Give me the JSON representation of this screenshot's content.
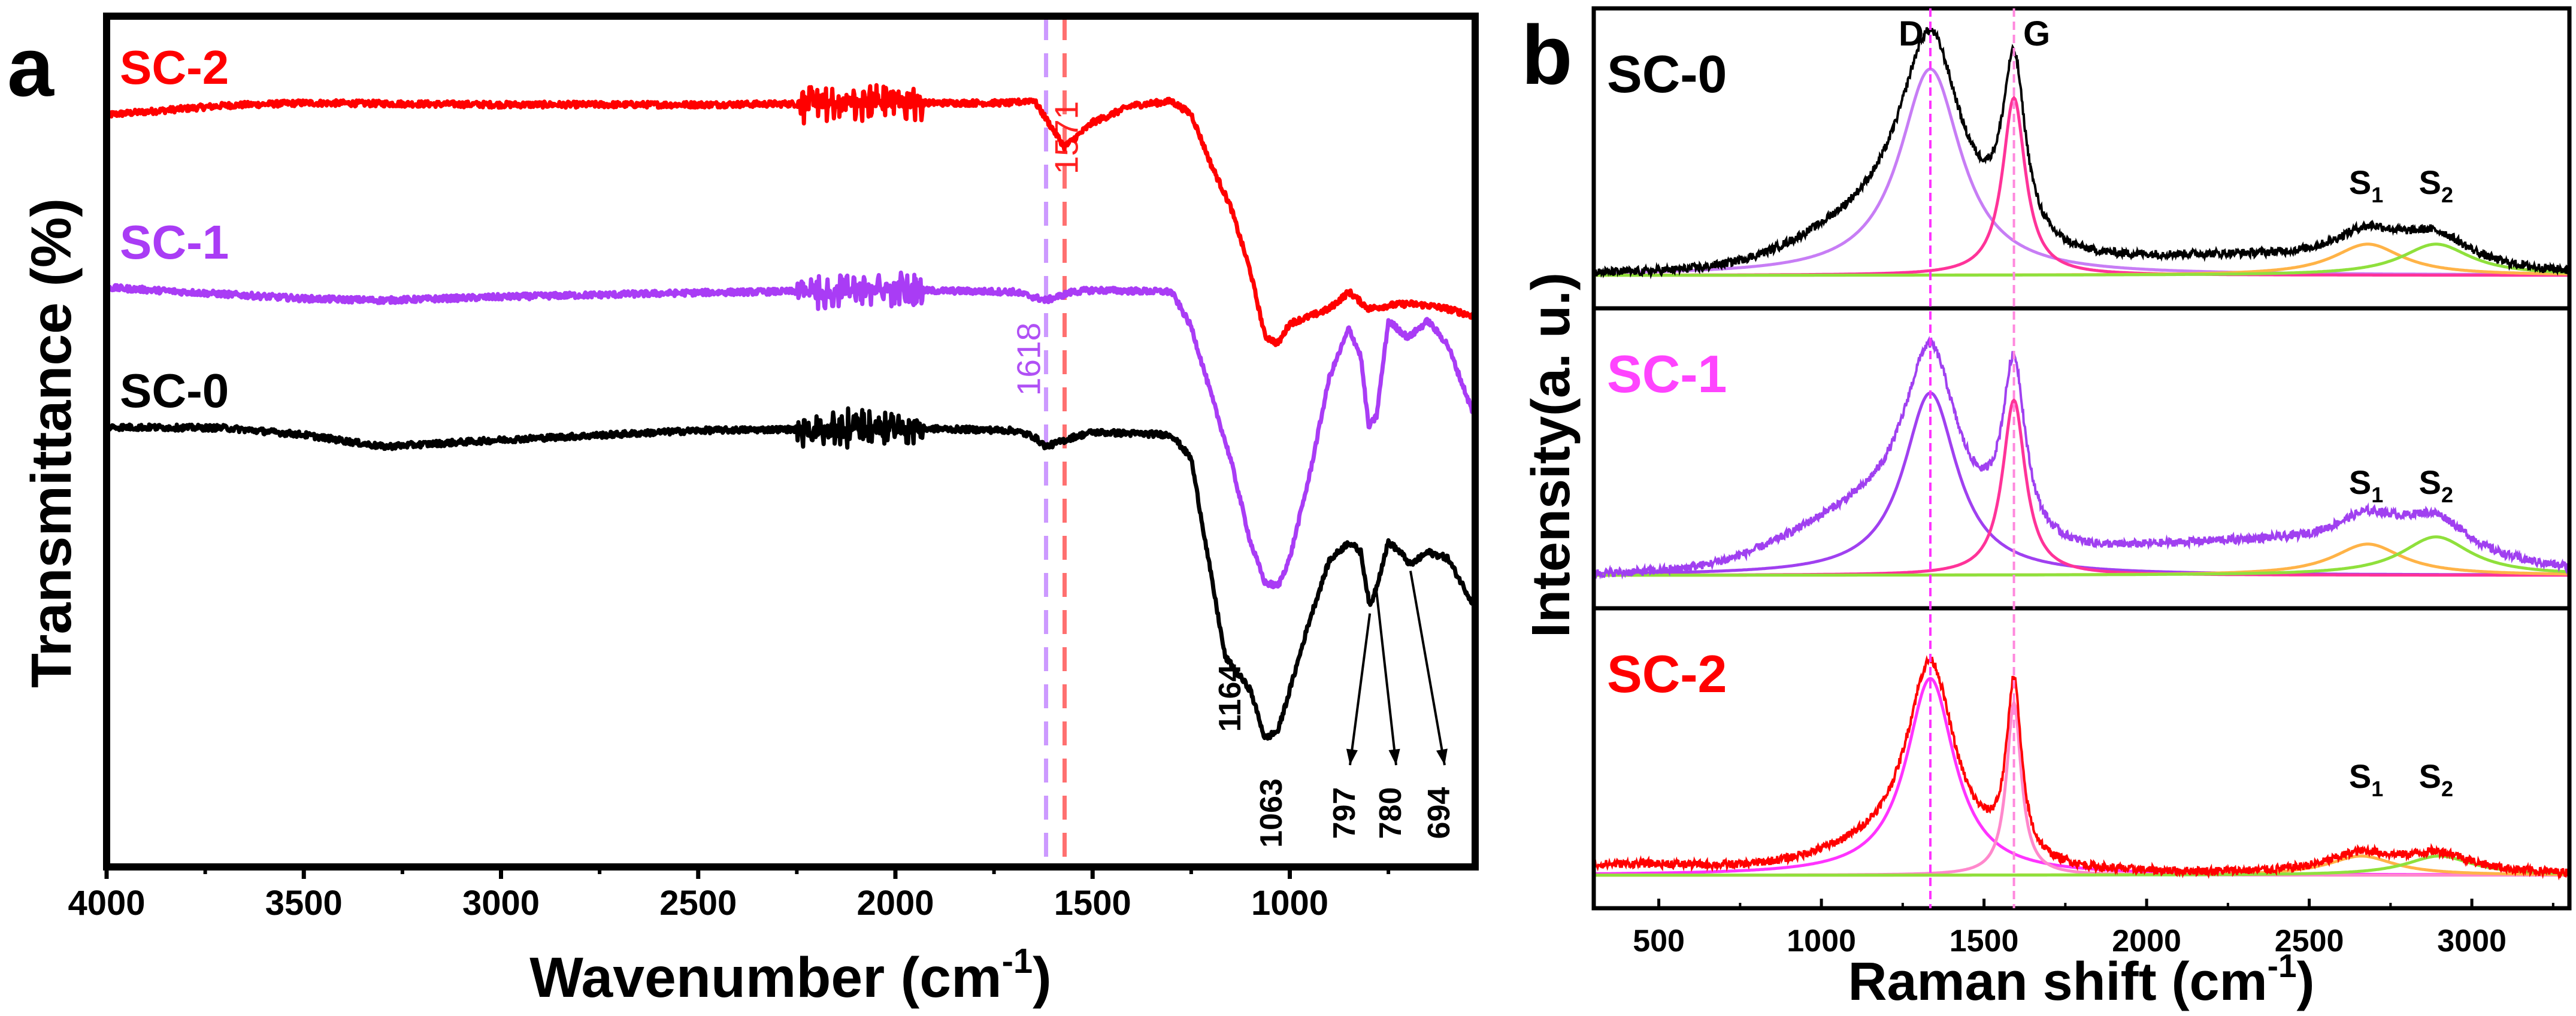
{
  "chart_data": [
    {
      "panel_label": "a",
      "type": "line",
      "xlabel": "Wavenumber (cm",
      "xlabel_sup": "-1",
      "xlabel_end": ")",
      "ylabel": "Transmittance (%)",
      "xlim": [
        4000,
        530
      ],
      "x_reversed": true,
      "x_ticks": [
        "4000",
        "3500",
        "3000",
        "2500",
        "2000",
        "1500",
        "1000"
      ],
      "y_ticks": [],
      "y_units": "arbitrary, stacked",
      "series": [
        {
          "name": "SC-2",
          "color": "#ff0000",
          "x": [
            4000,
            3700,
            3500,
            3000,
            2500,
            2000,
            1700,
            1650,
            1571,
            1500,
            1400,
            1300,
            1250,
            1200,
            1150,
            1100,
            1063,
            1030,
            1000,
            950,
            900,
            850,
            800,
            750,
            700,
            650,
            600,
            530
          ],
          "y": [
            88.4,
            89.5,
            89.8,
            89.6,
            89.6,
            89.8,
            89.8,
            90.2,
            84.6,
            87.5,
            89.5,
            90.0,
            88.5,
            82.6,
            77.6,
            70.0,
            62.4,
            61.5,
            63.9,
            64.7,
            65.6,
            67.6,
            65.6,
            66.0,
            66.2,
            66.0,
            65.6,
            64.7
          ]
        },
        {
          "name": "SC-1",
          "color": "#a93cf5",
          "x": [
            4000,
            3500,
            3300,
            3000,
            2500,
            2000,
            1700,
            1618,
            1550,
            1500,
            1300,
            1250,
            1200,
            1150,
            1100,
            1063,
            1030,
            1000,
            950,
            900,
            850,
            820,
            800,
            780,
            750,
            700,
            650,
            600,
            530
          ],
          "y": [
            68.1,
            66.8,
            66.6,
            67.0,
            67.5,
            67.8,
            67.6,
            66.6,
            67.6,
            67.8,
            67.6,
            63.5,
            55.6,
            47.9,
            38.2,
            33.4,
            33.0,
            36.3,
            46.0,
            57.5,
            63.3,
            60.0,
            51.7,
            53.0,
            64.2,
            62.2,
            64.2,
            61.4,
            52.7
          ]
        },
        {
          "name": "SC-0",
          "color": "#000000",
          "x": [
            4000,
            3700,
            3500,
            3300,
            3000,
            2500,
            2000,
            1700,
            1650,
            1618,
            1550,
            1500,
            1300,
            1250,
            1200,
            1164,
            1100,
            1063,
            1030,
            1000,
            950,
            900,
            850,
            820,
            797,
            780,
            750,
            720,
            694,
            650,
            600,
            530
          ],
          "y": [
            51.7,
            51.6,
            50.8,
            49.4,
            50.2,
            51.3,
            51.6,
            51.3,
            50.6,
            49.4,
            50.5,
            51.1,
            50.8,
            48.0,
            34.4,
            24.7,
            20.8,
            15.1,
            16.0,
            20.8,
            29.0,
            36.0,
            38.2,
            37.0,
            30.5,
            33.0,
            38.2,
            37.0,
            35.5,
            37.0,
            36.3,
            30.5
          ]
        }
      ],
      "reference_lines": [
        {
          "x": 1618,
          "label": "1618",
          "color": "#cc99ff"
        },
        {
          "x": 1571,
          "label": "1571",
          "color": "#ff7070"
        }
      ],
      "annotations": [
        {
          "label": "1164",
          "x": 1164,
          "series": "SC-0",
          "arrow": false
        },
        {
          "label": "1063",
          "x": 1063,
          "series": "SC-0",
          "arrow": false
        },
        {
          "label": "797",
          "x": 797,
          "series": "SC-0",
          "arrow": true
        },
        {
          "label": "780",
          "x": 780,
          "series": "SC-0",
          "arrow": true
        },
        {
          "label": "694",
          "x": 694,
          "series": "SC-0",
          "arrow": true
        }
      ]
    },
    {
      "panel_label": "b",
      "type": "line",
      "xlabel": "Raman shift (cm",
      "xlabel_sup": "-1",
      "xlabel_end": ")",
      "ylabel": "Intensity(a. u.)",
      "xlim": [
        300,
        3300
      ],
      "x_ticks": [
        "500",
        "1000",
        "1500",
        "2000",
        "2500",
        "3000"
      ],
      "y_ticks": [],
      "band_labels": {
        "D": "D",
        "G": "G"
      },
      "band_positions": {
        "D": 1335,
        "G": 1592
      },
      "reference_line_color": "#ff33ff",
      "panels": [
        {
          "name": "SC-0",
          "label_color": "#000000",
          "data_color": "#000000",
          "s1": "S",
          "s1_sub": "1",
          "s2": "S",
          "s2_sub": "2",
          "peaks": [
            {
              "name": "D",
              "center": 1335,
              "height": 0.86,
              "fwhm": 230,
              "color": "#c77df5"
            },
            {
              "name": "G",
              "center": 1592,
              "height": 0.74,
              "fwhm": 85,
              "color": "#ff3399"
            },
            {
              "name": "S1",
              "center": 2680,
              "height": 0.13,
              "fwhm": 260,
              "color": "#ffb347"
            },
            {
              "name": "S2",
              "center": 2890,
              "height": 0.13,
              "fwhm": 260,
              "color": "#8fe03c"
            }
          ],
          "background": [
            {
              "center": 1180,
              "height": 0.17,
              "fwhm": 520
            },
            {
              "center": 2250,
              "height": 0.06,
              "fwhm": 900
            }
          ]
        },
        {
          "name": "SC-1",
          "label_color": "#ff44ff",
          "data_color": "#a040f0",
          "s1": "S",
          "s1_sub": "1",
          "s2": "S",
          "s2_sub": "2",
          "peaks": [
            {
              "name": "D",
              "center": 1335,
              "height": 0.76,
              "fwhm": 200,
              "color": "#a040f0"
            },
            {
              "name": "G",
              "center": 1592,
              "height": 0.73,
              "fwhm": 85,
              "color": "#ff3399"
            },
            {
              "name": "S1",
              "center": 2680,
              "height": 0.13,
              "fwhm": 260,
              "color": "#ffb347"
            },
            {
              "name": "S2",
              "center": 2890,
              "height": 0.16,
              "fwhm": 260,
              "color": "#8fe03c"
            }
          ],
          "background": [
            {
              "center": 1150,
              "height": 0.22,
              "fwhm": 560
            },
            {
              "center": 2300,
              "height": 0.12,
              "fwhm": 1100
            }
          ]
        },
        {
          "name": "SC-2",
          "label_color": "#ff0000",
          "data_color": "#ff0000",
          "s1": "S",
          "s1_sub": "1",
          "s2": "S",
          "s2_sub": "2",
          "peaks": [
            {
              "name": "D",
              "center": 1335,
              "height": 0.82,
              "fwhm": 180,
              "color": "#ff33ff"
            },
            {
              "name": "G",
              "center": 1592,
              "height": 0.72,
              "fwhm": 55,
              "color": "#ff88cc"
            },
            {
              "name": "S1",
              "center": 2660,
              "height": 0.08,
              "fwhm": 250,
              "color": "#ffb347"
            },
            {
              "name": "S2",
              "center": 2900,
              "height": 0.08,
              "fwhm": 250,
              "color": "#8fe03c"
            }
          ],
          "background": [
            {
              "center": 1200,
              "height": 0.08,
              "fwhm": 500
            },
            {
              "center": 400,
              "height": 0.04,
              "fwhm": 600
            }
          ]
        }
      ]
    }
  ]
}
